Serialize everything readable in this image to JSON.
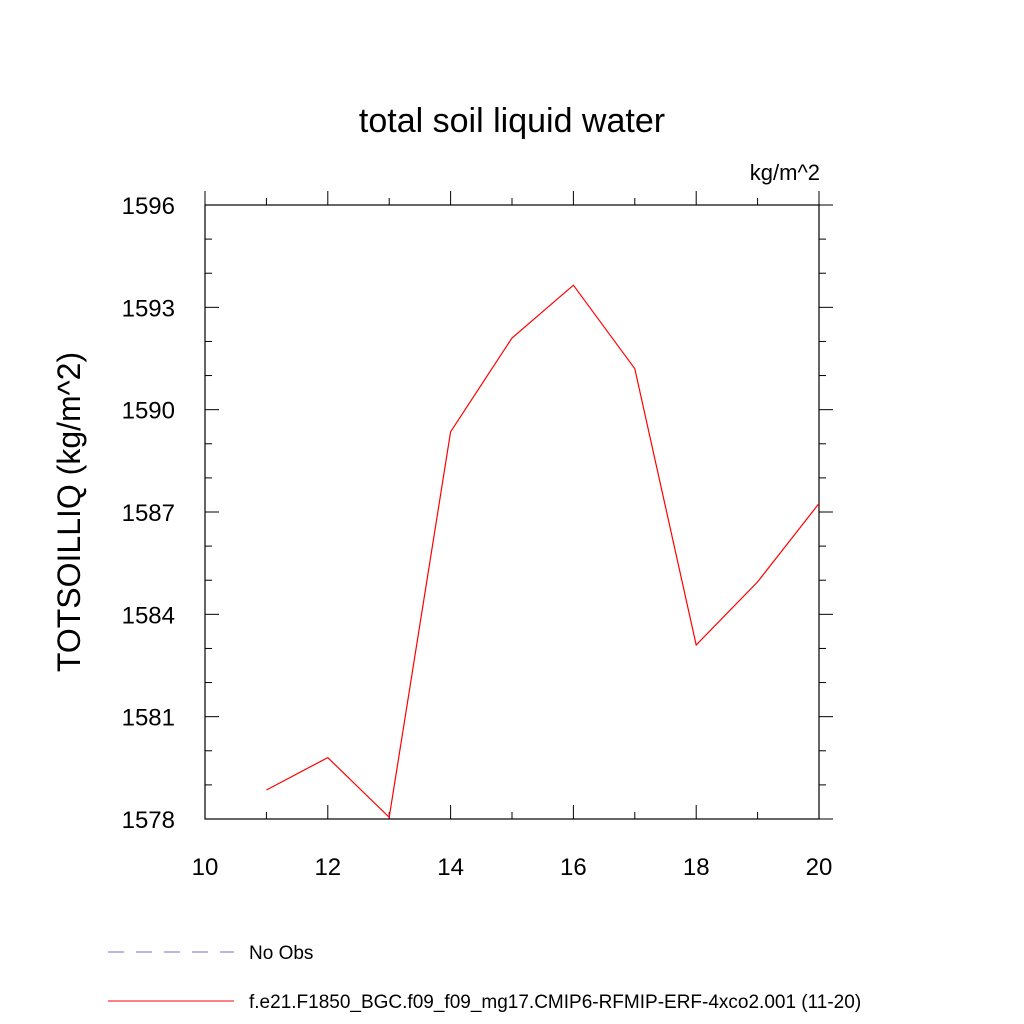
{
  "chart_data": {
    "type": "line",
    "title": "total soil liquid water",
    "units_label": "kg/m^2",
    "ylabel": "TOTSOILLIQ  (kg/m^2)",
    "xlabel": "",
    "xlim": [
      10,
      20
    ],
    "ylim": [
      1578,
      1596
    ],
    "x_ticks": [
      10,
      12,
      14,
      16,
      18,
      20
    ],
    "y_ticks": [
      1578,
      1581,
      1584,
      1587,
      1590,
      1593,
      1596
    ],
    "grid": false,
    "legend_position": "bottom-left",
    "series": [
      {
        "name": "No Obs",
        "color": "#7b68c8",
        "dashed": true,
        "x": [],
        "values": []
      },
      {
        "name": "f.e21.F1850_BGC.f09_f09_mg17.CMIP6-RFMIP-ERF-4xco2.001 (11-20)",
        "color": "#ff0000",
        "dashed": false,
        "x": [
          11,
          12,
          13,
          14,
          15,
          16,
          17,
          18,
          19,
          20
        ],
        "values": [
          1578.85,
          1579.8,
          1578.05,
          1589.35,
          1592.1,
          1593.65,
          1591.2,
          1583.1,
          1584.95,
          1587.25
        ]
      }
    ]
  }
}
